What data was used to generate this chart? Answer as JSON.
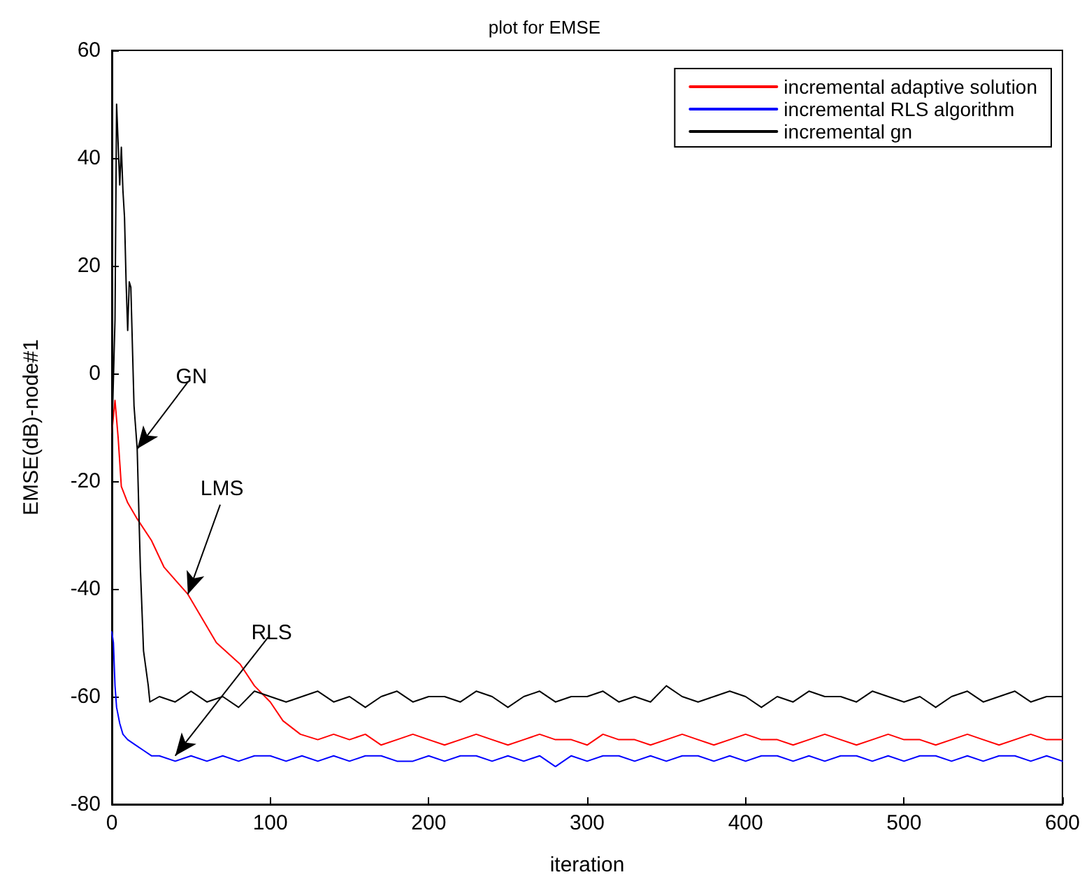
{
  "chart_data": {
    "type": "line",
    "title": "plot for EMSE",
    "xlabel": "iteration",
    "ylabel": "EMSE(dB)-node#1",
    "xlim": [
      0,
      600
    ],
    "xticks": [
      0,
      100,
      200,
      300,
      400,
      500,
      600
    ],
    "ylim": [
      -80,
      60
    ],
    "yticks": [
      -80,
      -60,
      -40,
      -20,
      0,
      20,
      40,
      60
    ],
    "grid": false,
    "legend": "top right",
    "marker": "none",
    "line_style": "solid",
    "annotations": [
      {
        "text": "GN",
        "x": 16,
        "y": -14
      },
      {
        "text": "LMS",
        "x": 48,
        "y": -41
      },
      {
        "text": "RLS",
        "x": 40,
        "y": -71
      }
    ],
    "series": [
      {
        "name": "incremental adaptive solution",
        "color": "#ff0000",
        "x": [
          0,
          2,
          4,
          6,
          10,
          16,
          25,
          33,
          48,
          66,
          81,
          90,
          100,
          108,
          119,
          130,
          140,
          150,
          160,
          170,
          180,
          190,
          200,
          210,
          220,
          230,
          240,
          250,
          260,
          270,
          280,
          290,
          300,
          310,
          320,
          330,
          340,
          350,
          360,
          370,
          380,
          390,
          400,
          410,
          420,
          430,
          440,
          450,
          460,
          470,
          480,
          490,
          500,
          510,
          520,
          530,
          540,
          550,
          560,
          570,
          580,
          590,
          600
        ],
        "values": [
          -11,
          -5,
          -12,
          -21,
          -24,
          -27,
          -31,
          -36,
          -41,
          -50,
          -54,
          -58,
          -61,
          -64.5,
          -67,
          -68,
          -67,
          -68,
          -67,
          -69,
          -68,
          -67,
          -68,
          -69,
          -68,
          -67,
          -68,
          -69,
          -68,
          -67,
          -68,
          -68,
          -69,
          -67,
          -68,
          -68,
          -69,
          -68,
          -67,
          -68,
          -69,
          -68,
          -67,
          -68,
          -68,
          -69,
          -68,
          -67,
          -68,
          -69,
          -68,
          -67,
          -68,
          -68,
          -69,
          -68,
          -67,
          -68,
          -69,
          -68,
          -67,
          -68,
          -68
        ]
      },
      {
        "name": "incremental RLS algorithm",
        "color": "#0000ff",
        "x": [
          0,
          1,
          2,
          3,
          5,
          7,
          10,
          15,
          20,
          25,
          30,
          40,
          50,
          60,
          70,
          80,
          90,
          100,
          110,
          120,
          130,
          140,
          150,
          160,
          170,
          180,
          190,
          200,
          210,
          220,
          230,
          240,
          250,
          260,
          270,
          280,
          290,
          300,
          310,
          320,
          330,
          340,
          350,
          360,
          370,
          380,
          390,
          400,
          410,
          420,
          430,
          440,
          450,
          460,
          470,
          480,
          490,
          500,
          510,
          520,
          530,
          540,
          550,
          560,
          570,
          580,
          590,
          600
        ],
        "values": [
          -48,
          -50,
          -58,
          -62,
          -65,
          -67,
          -68,
          -69,
          -70,
          -71,
          -71,
          -72,
          -71,
          -72,
          -71,
          -72,
          -71,
          -71,
          -72,
          -71,
          -72,
          -71,
          -72,
          -71,
          -71,
          -72,
          -72,
          -71,
          -72,
          -71,
          -71,
          -72,
          -71,
          -72,
          -71,
          -73,
          -71,
          -72,
          -71,
          -71,
          -72,
          -71,
          -72,
          -71,
          -71,
          -72,
          -71,
          -72,
          -71,
          -71,
          -72,
          -71,
          -72,
          -71,
          -71,
          -72,
          -71,
          -72,
          -71,
          -71,
          -72,
          -71,
          -72,
          -71,
          -71,
          -72,
          -71,
          -72
        ]
      },
      {
        "name": "incremental gn",
        "color": "#000000",
        "x": [
          0,
          2,
          3,
          5,
          6,
          7,
          8,
          9,
          10,
          11,
          12,
          14,
          16,
          18,
          20,
          23,
          24,
          30,
          40,
          50,
          60,
          70,
          80,
          90,
          100,
          110,
          120,
          130,
          140,
          150,
          160,
          170,
          180,
          190,
          200,
          210,
          220,
          230,
          240,
          250,
          260,
          270,
          280,
          290,
          300,
          310,
          320,
          330,
          340,
          350,
          360,
          370,
          380,
          390,
          400,
          410,
          420,
          430,
          440,
          450,
          460,
          470,
          480,
          490,
          500,
          510,
          520,
          530,
          540,
          550,
          560,
          570,
          580,
          590,
          600
        ],
        "values": [
          -12,
          10,
          50,
          35,
          42,
          34,
          29,
          17,
          8,
          17,
          16,
          -6,
          -14,
          -36,
          -51.5,
          -58,
          -61,
          -60,
          -61,
          -59,
          -61,
          -60,
          -62,
          -59,
          -60,
          -61,
          -60,
          -59,
          -61,
          -60,
          -62,
          -60,
          -59,
          -61,
          -60,
          -60,
          -61,
          -59,
          -60,
          -62,
          -60,
          -59,
          -61,
          -60,
          -60,
          -59,
          -61,
          -60,
          -61,
          -58,
          -60,
          -61,
          -60,
          -59,
          -60,
          -62,
          -60,
          -61,
          -59,
          -60,
          -60,
          -61,
          -59,
          -60,
          -61,
          -60,
          -62,
          -60,
          -59,
          -61,
          -60,
          -59,
          -61,
          -60,
          -60
        ]
      }
    ]
  }
}
